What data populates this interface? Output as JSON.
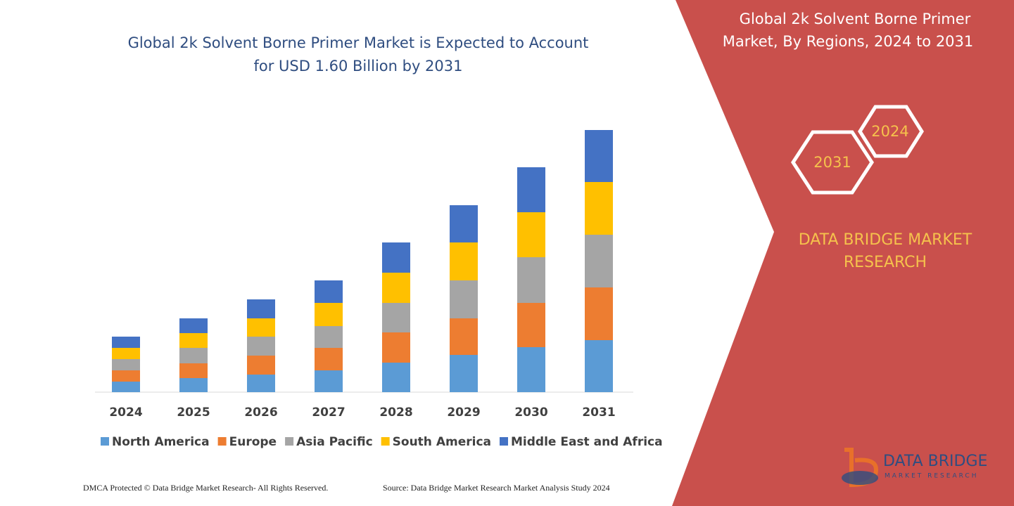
{
  "chart_data": {
    "type": "bar",
    "stacked": true,
    "title": [
      "Global 2k Solvent Borne Primer Market is Expected to Account",
      "for USD 1.60 Billion by 2031"
    ],
    "categories": [
      "2024",
      "2025",
      "2026",
      "2027",
      "2028",
      "2029",
      "2030",
      "2031"
    ],
    "series": [
      {
        "name": "North America",
        "color": "#5b9bd5",
        "values": [
          15,
          20,
          25,
          31,
          42,
          53,
          64,
          74
        ]
      },
      {
        "name": "Europe",
        "color": "#ed7d31",
        "values": [
          16,
          21,
          27,
          32,
          43,
          52,
          63,
          75
        ]
      },
      {
        "name": "Asia Pacific",
        "color": "#a5a5a5",
        "values": [
          16,
          22,
          27,
          31,
          42,
          54,
          65,
          75
        ]
      },
      {
        "name": "South America",
        "color": "#ffc000",
        "values": [
          16,
          21,
          26,
          33,
          43,
          54,
          64,
          75
        ]
      },
      {
        "name": "Middle East and Africa",
        "color": "#4472c4",
        "values": [
          16,
          21,
          27,
          32,
          43,
          53,
          64,
          74
        ]
      }
    ],
    "ylim": [
      0,
      400
    ]
  },
  "panel": {
    "title": [
      "Global 2k Solvent Borne Primer",
      "Market, By Regions, 2024 to 2031"
    ],
    "hex_back": "2024",
    "hex_front": "2031",
    "brand": [
      "DATA BRIDGE MARKET",
      "RESEARCH"
    ],
    "logo": "DATA BRIDGE",
    "logo_sub": "MARKET RESEARCH"
  },
  "footer": {
    "left": "DMCA Protected © Data Bridge Market Research-  All Rights Reserved.",
    "right": "Source: Data Bridge Market Research  Market Analysis Study 2024"
  }
}
